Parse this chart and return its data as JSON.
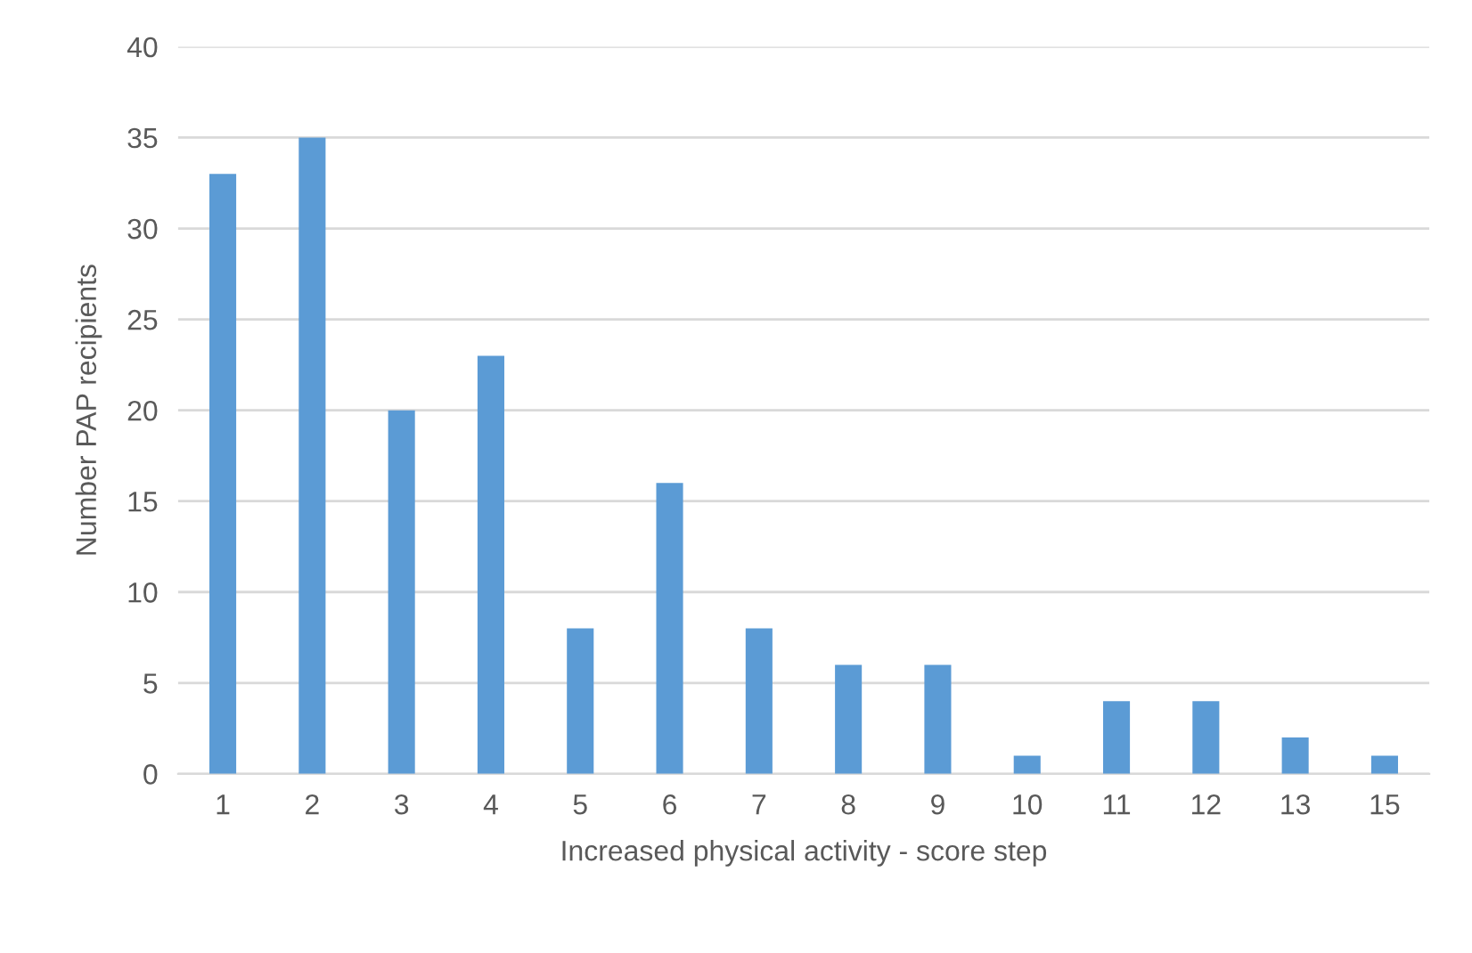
{
  "chart_data": {
    "type": "bar",
    "xlabel": "Increased physical activity - score step",
    "ylabel": "Number PAP recipients",
    "categories": [
      "1",
      "2",
      "3",
      "4",
      "5",
      "6",
      "7",
      "8",
      "9",
      "10",
      "11",
      "12",
      "13",
      "15"
    ],
    "values": [
      33,
      35,
      20,
      23,
      8,
      16,
      8,
      6,
      6,
      1,
      4,
      4,
      2,
      1
    ],
    "color": "#5b9bd5",
    "ylim": [
      0,
      40
    ],
    "yticks": [
      0,
      5,
      10,
      15,
      20,
      25,
      30,
      35,
      40
    ],
    "grid": "y"
  }
}
